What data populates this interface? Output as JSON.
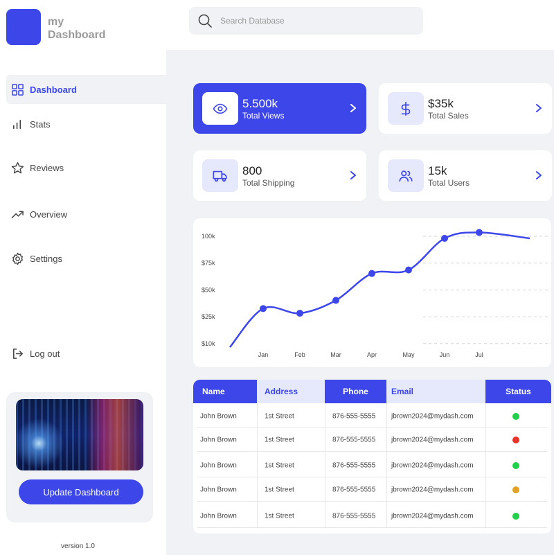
{
  "brand": {
    "line1": "my",
    "line2": "Dashboard"
  },
  "search": {
    "placeholder": "Search Database"
  },
  "nav": [
    {
      "label": "Dashboard",
      "icon": "grid-icon",
      "active": true
    },
    {
      "label": "Stats",
      "icon": "bar-chart-icon"
    },
    {
      "label": "Reviews",
      "icon": "star-icon"
    },
    {
      "label": "Overview",
      "icon": "trending-up-icon"
    },
    {
      "label": "Settings",
      "icon": "gear-icon"
    }
  ],
  "logout": {
    "label": "Log out",
    "icon": "logout-icon"
  },
  "promo": {
    "button": "Update Dashboard"
  },
  "version": "version 1.0",
  "stats": [
    {
      "value": "5.500k",
      "label": "Total Views",
      "icon": "eye-icon",
      "active": true
    },
    {
      "value": "$35k",
      "label": "Total Sales",
      "icon": "dollar-icon"
    },
    {
      "value": "800",
      "label": "Total Shipping",
      "icon": "truck-icon"
    },
    {
      "value": "15k",
      "label": "Total Users",
      "icon": "users-icon"
    }
  ],
  "chart_data": {
    "type": "line",
    "categories": [
      "Jan",
      "Feb",
      "Mar",
      "Apr",
      "May",
      "Jun",
      "Jul"
    ],
    "y_ticks": [
      "100k",
      "$75k",
      "$50k",
      "$25k",
      "$10k"
    ],
    "series": [
      {
        "values": [
          40,
          36,
          47,
          70,
          73,
          100,
          105
        ]
      }
    ],
    "line_start": 7,
    "line_end": 100,
    "grid": "horizontal-dashed",
    "color": "#3d46e8"
  },
  "table": {
    "headers": [
      "Name",
      "Address",
      "Phone",
      "Email",
      "Status"
    ],
    "rows": [
      {
        "name": "John Brown",
        "address": "1st Street",
        "phone": "876-555-5555",
        "email": "jbrown2024@mydash.com",
        "status": "green"
      },
      {
        "name": "John Brown",
        "address": "1st Street",
        "phone": "876-555-5555",
        "email": "jbrown2024@mydash.com",
        "status": "red"
      },
      {
        "name": "John Brown",
        "address": "1st Street",
        "phone": "876-555-5555",
        "email": "jbrown2024@mydash.com",
        "status": "green"
      },
      {
        "name": "John Brown",
        "address": "1st Street",
        "phone": "876-555-5555",
        "email": "jbrown2024@mydash.com",
        "status": "orange"
      },
      {
        "name": "John Brown",
        "address": "1st Street",
        "phone": "876-555-5555",
        "email": "jbrown2024@mydash.com",
        "status": "green"
      }
    ]
  },
  "colors": {
    "accent": "#3d46e8",
    "accent_light": "#e6e8fb",
    "panel": "#f1f2f5",
    "green": "#21d04a",
    "red": "#e8332b",
    "orange": "#e2a224"
  }
}
